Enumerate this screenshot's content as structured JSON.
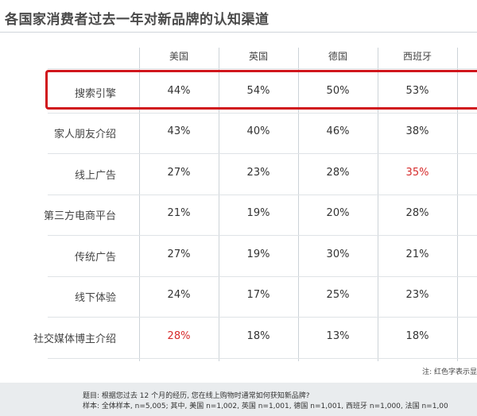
{
  "title": "各国家消费者过去一年对新品牌的认知渠道",
  "chart_data": {
    "type": "table",
    "columns": [
      "美国",
      "英国",
      "德国",
      "西班牙"
    ],
    "rows": [
      {
        "label": "搜索引擎",
        "values": [
          "44%",
          "54%",
          "50%",
          "53%"
        ],
        "highlighted": true
      },
      {
        "label": "家人朋友介绍",
        "values": [
          "43%",
          "40%",
          "46%",
          "38%"
        ]
      },
      {
        "label": "线上广告",
        "values": [
          "27%",
          "23%",
          "28%",
          "35%"
        ],
        "red_cells": [
          3
        ]
      },
      {
        "label": "第三方电商平台",
        "values": [
          "21%",
          "19%",
          "20%",
          "28%"
        ]
      },
      {
        "label": "传统广告",
        "values": [
          "27%",
          "19%",
          "30%",
          "21%"
        ]
      },
      {
        "label": "线下体验",
        "values": [
          "24%",
          "17%",
          "25%",
          "23%"
        ]
      },
      {
        "label": "社交媒体博主介绍",
        "values": [
          "28%",
          "18%",
          "13%",
          "18%"
        ],
        "red_cells": [
          0
        ]
      }
    ]
  },
  "note": "注: 红色字表示显",
  "footer": {
    "question": "题目: 根据您过去 12 个月的经历, 您在线上购物时通常如何获知新品牌?",
    "sample": "样本: 全体样本, n=5,005; 其中, 美国 n=1,002, 英国 n=1,001, 德国 n=1,001, 西班牙 n=1,000, 法国 n=1,00"
  },
  "colors": {
    "highlight_border": "#d0161c",
    "red_text": "#d62b2b",
    "normal_text": "#333333",
    "footer_bg": "#e9ecee"
  }
}
